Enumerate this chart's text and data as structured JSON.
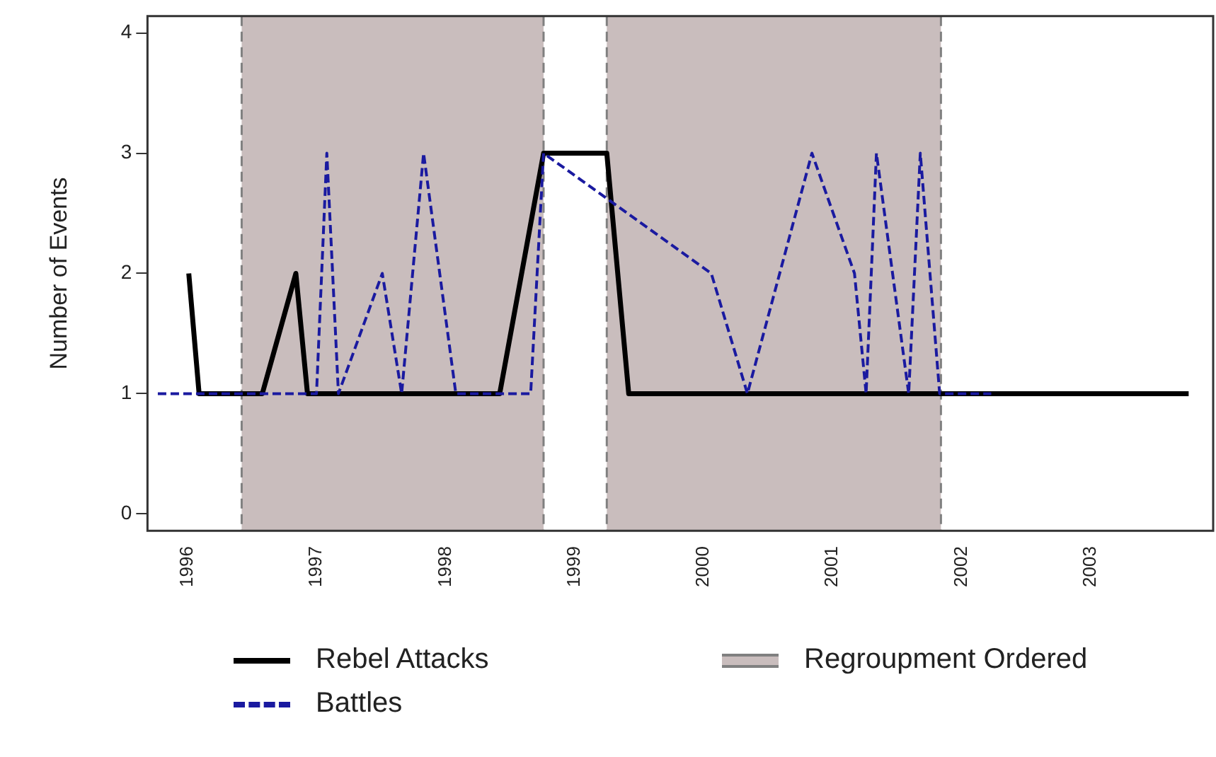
{
  "chart_data": {
    "type": "line",
    "ylabel": "Number of Events",
    "xlim": [
      1995.69,
      2003.95
    ],
    "xticks": [
      1996,
      1997,
      1998,
      1999,
      2000,
      2001,
      2002,
      2003
    ],
    "ylim": [
      -0.14,
      4.14
    ],
    "yticks": [
      0,
      1,
      2,
      3,
      4
    ],
    "grid": false,
    "legend": "bottom",
    "marker": "none",
    "series": [
      {
        "name": "Rebel Attacks",
        "color": "#000000",
        "line_style": "solid",
        "x": [
          1996.01,
          1996.09,
          1996.58,
          1996.84,
          1996.93,
          1998.42,
          1998.76,
          1999.25,
          1999.42,
          2003.76
        ],
        "values": [
          2,
          1,
          1,
          2,
          1,
          1,
          3,
          3,
          1,
          1
        ]
      },
      {
        "name": "Battles",
        "color": "#1a1aa0",
        "line_style": "dashed",
        "x": [
          1995.77,
          1997.0,
          1997.08,
          1997.17,
          1997.51,
          1997.66,
          1997.83,
          1998.08,
          1998.66,
          1998.76,
          2000.06,
          2000.34,
          2000.84,
          2001.17,
          2001.26,
          2001.34,
          2001.59,
          2001.68,
          2001.83,
          2002.23
        ],
        "values": [
          1,
          1,
          3,
          1,
          2,
          1,
          3,
          1,
          1,
          3,
          2,
          1,
          3,
          2,
          1,
          3,
          1,
          3,
          1,
          1
        ]
      }
    ],
    "bands": [
      {
        "axis": "x",
        "from": 1996.42,
        "to": 1998.76,
        "label": "Regroupment Ordered",
        "color": "#c9bdbd"
      },
      {
        "axis": "x",
        "from": 1999.25,
        "to": 2001.84,
        "color": "#c9bdbd"
      }
    ]
  }
}
